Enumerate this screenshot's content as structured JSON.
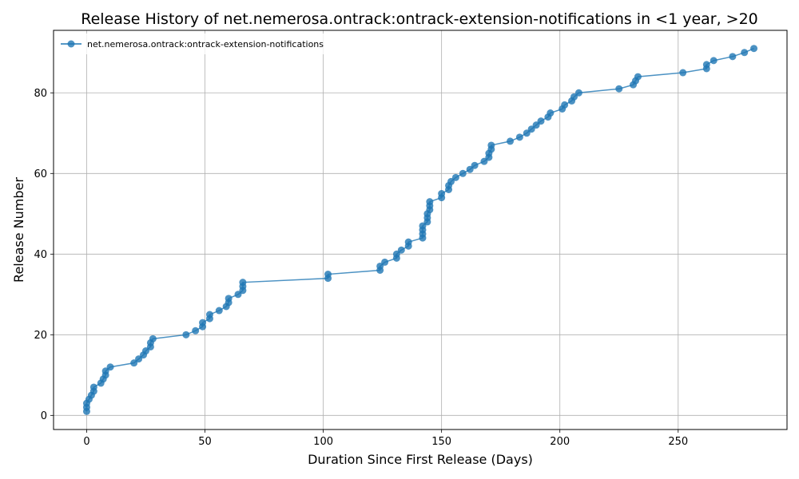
{
  "chart_data": {
    "type": "line",
    "title": "Release History of net.nemerosa.ontrack:ontrack-extension-notifications in <1 year, >20",
    "xlabel": "Duration Since First Release (Days)",
    "ylabel": "Release Number",
    "xlim": [
      -14,
      296
    ],
    "ylim": [
      -3.5,
      95.5
    ],
    "xticks": [
      0,
      50,
      100,
      150,
      200,
      250
    ],
    "yticks": [
      0,
      20,
      40,
      60,
      80
    ],
    "grid": true,
    "legend_position": "top-left",
    "colors": {
      "series": "#1f77b4"
    },
    "series": [
      {
        "name": "net.nemerosa.ontrack:ontrack-extension-notifications",
        "x": [
          0,
          0,
          0,
          1,
          2,
          3,
          3,
          6,
          7,
          8,
          8,
          10,
          20,
          22,
          24,
          25,
          27,
          27,
          28,
          42,
          46,
          49,
          49,
          52,
          52,
          56,
          59,
          60,
          60,
          64,
          66,
          66,
          66,
          102,
          102,
          124,
          124,
          126,
          131,
          131,
          133,
          136,
          136,
          142,
          142,
          142,
          142,
          144,
          144,
          144,
          145,
          145,
          145,
          150,
          150,
          153,
          153,
          154,
          156,
          159,
          162,
          164,
          168,
          170,
          170,
          171,
          171,
          179,
          183,
          186,
          188,
          190,
          192,
          195,
          196,
          201,
          202,
          205,
          206,
          208,
          225,
          231,
          232,
          233,
          252,
          262,
          262,
          265,
          273,
          278,
          282
        ],
        "y": [
          1,
          2,
          3,
          4,
          5,
          6,
          7,
          8,
          9,
          10,
          11,
          12,
          13,
          14,
          15,
          16,
          17,
          18,
          19,
          20,
          21,
          22,
          23,
          24,
          25,
          26,
          27,
          28,
          29,
          30,
          31,
          32,
          33,
          34,
          35,
          36,
          37,
          38,
          39,
          40,
          41,
          42,
          43,
          44,
          45,
          46,
          47,
          48,
          49,
          50,
          51,
          52,
          53,
          54,
          55,
          56,
          57,
          58,
          59,
          60,
          61,
          62,
          63,
          64,
          65,
          66,
          67,
          68,
          69,
          70,
          71,
          72,
          73,
          74,
          75,
          76,
          77,
          78,
          79,
          80,
          81,
          82,
          83,
          84,
          85,
          86,
          87,
          88,
          89,
          90,
          91
        ]
      }
    ]
  }
}
